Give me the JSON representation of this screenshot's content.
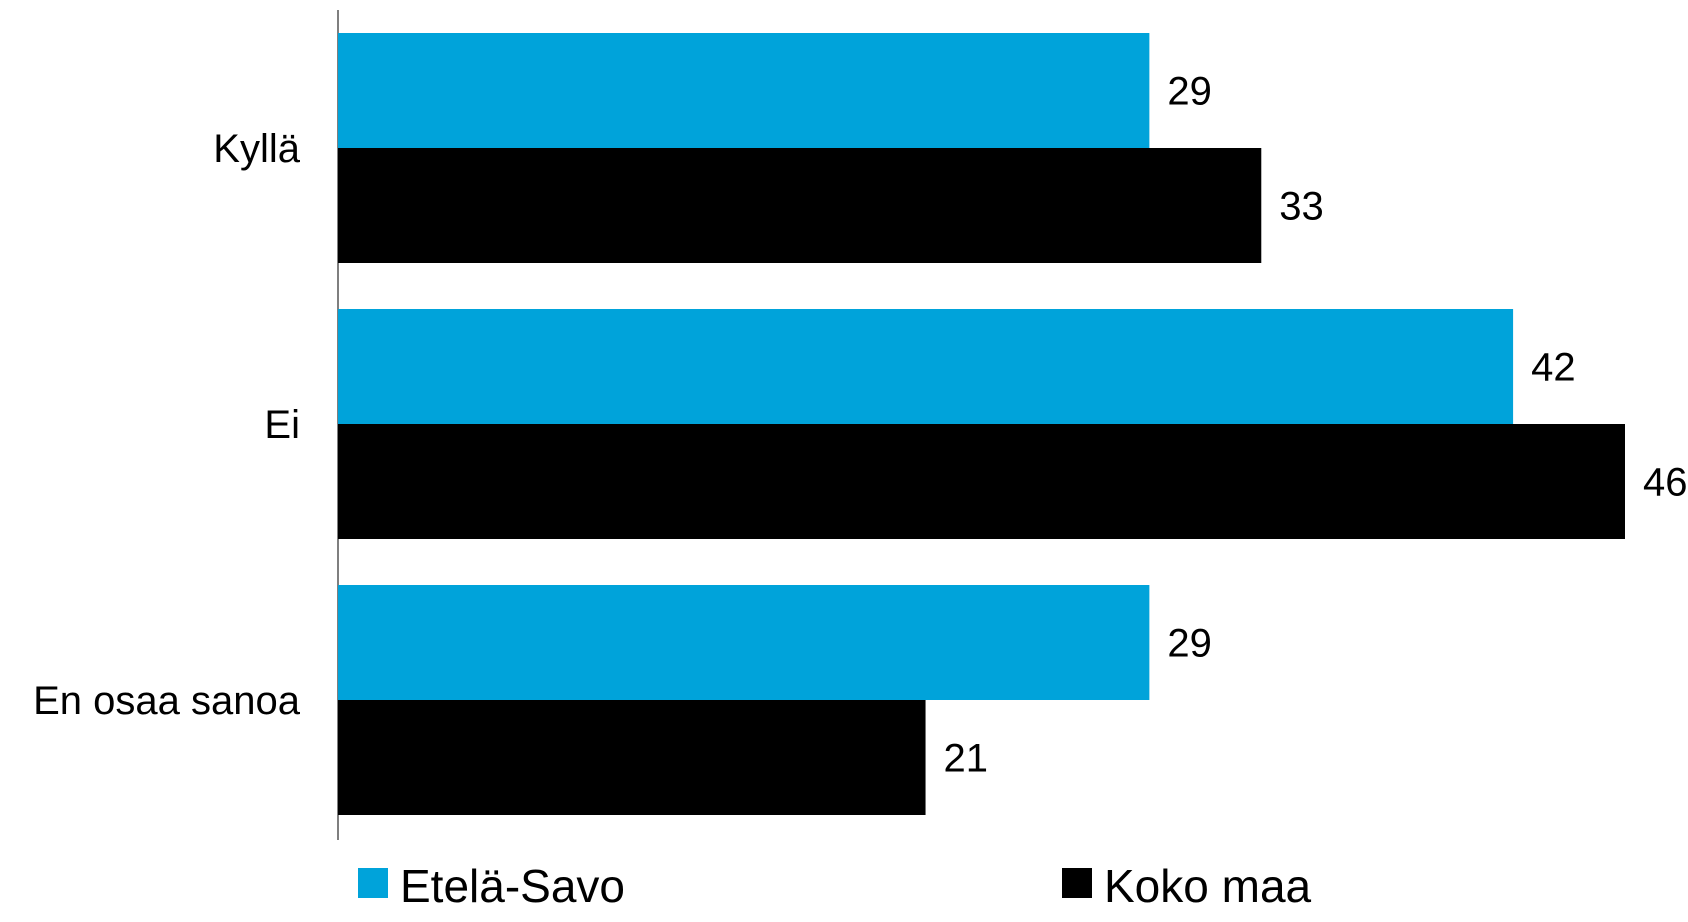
{
  "chart_data": {
    "type": "bar",
    "orientation": "horizontal",
    "categories": [
      "Kyllä",
      "Ei",
      "En osaa sanoa"
    ],
    "series": [
      {
        "name": "Etelä-Savo",
        "color": "#00A3DA",
        "values": [
          29,
          42,
          29
        ]
      },
      {
        "name": "Koko maa",
        "color": "#000000",
        "values": [
          33,
          46,
          21
        ]
      }
    ],
    "xlim": [
      0,
      46
    ],
    "grid": false,
    "legend_position": "bottom",
    "data_labels": true
  }
}
